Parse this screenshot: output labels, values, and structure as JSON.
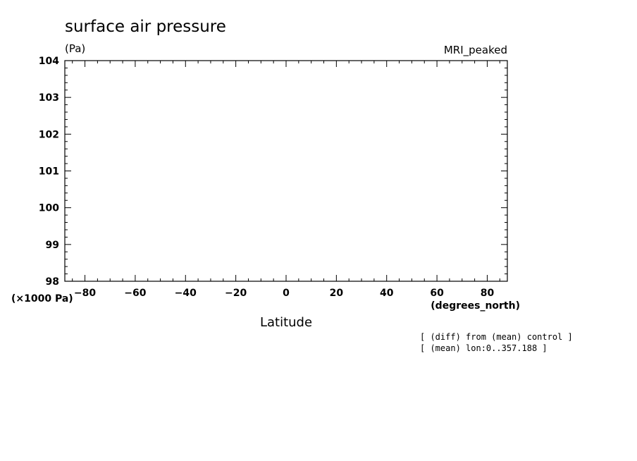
{
  "chart_data": {
    "type": "line",
    "title": "surface air pressure",
    "ylabel": "(Pa)",
    "y_scale_label": "(×1000 Pa)",
    "xlabel": "Latitude",
    "x_units": "(degrees_north)",
    "dataset": "MRI_peaked",
    "notes": [
      "[ (diff) from (mean) control ]",
      "[ (mean) lon:0..357.188 ]"
    ],
    "xlim": [
      -88,
      88
    ],
    "ylim": [
      98,
      104
    ],
    "x_ticks": [
      -80,
      -60,
      -40,
      -20,
      0,
      20,
      40,
      60,
      80
    ],
    "y_ticks": [
      98,
      99,
      100,
      101,
      102,
      103,
      104
    ],
    "x_tick_labels": [
      "−80",
      "−60",
      "−40",
      "−20",
      "0",
      "20",
      "40",
      "60",
      "80"
    ],
    "y_tick_labels": [
      "98",
      "99",
      "100",
      "101",
      "102",
      "103",
      "104"
    ],
    "series": [],
    "grid": false,
    "colors": {
      "axis": "#000000",
      "background": "#ffffff"
    }
  }
}
